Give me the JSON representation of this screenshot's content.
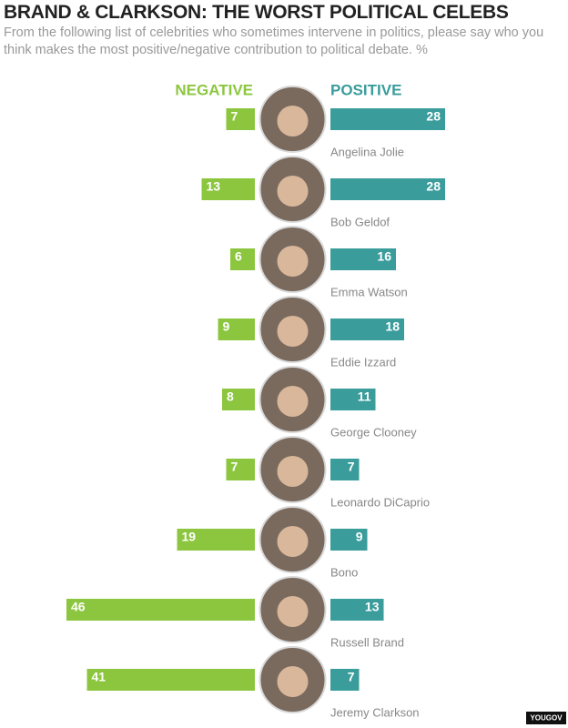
{
  "chart_data": {
    "type": "diverging-bar",
    "title": "BRAND & CLARKSON: THE WORST POLITICAL CELEBS",
    "subtitle": "From the following list of celebrities who sometimes intervene in politics, please say who you think makes the most positive/negative contribution to political debate. %",
    "categories": [
      "Angelina Jolie",
      "Bob Geldof",
      "Emma Watson",
      "Eddie Izzard",
      "George Clooney",
      "Leonardo DiCaprio",
      "Bono",
      "Russell Brand",
      "Jeremy Clarkson"
    ],
    "series": [
      {
        "name": "NEGATIVE",
        "color": "#8cc63f",
        "values": [
          7,
          13,
          6,
          9,
          8,
          7,
          19,
          46,
          41
        ]
      },
      {
        "name": "POSITIVE",
        "color": "#3b9c9c",
        "values": [
          28,
          28,
          16,
          18,
          11,
          7,
          9,
          13,
          7
        ]
      }
    ],
    "xlim": [
      0,
      50
    ],
    "source": "YOUGOV"
  }
}
